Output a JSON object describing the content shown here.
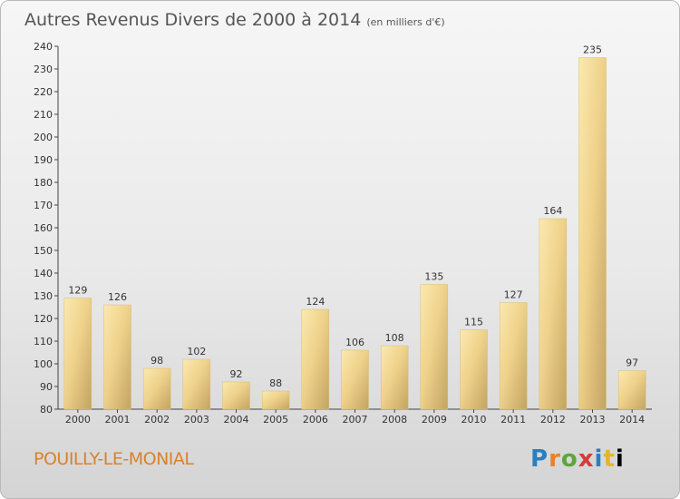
{
  "title": "Autres Revenus Divers de 2000 à 2014",
  "unit_note": "(en milliers d'€)",
  "commune": "POUILLY-LE-MONIAL",
  "logo_text": "Proxiti",
  "colors": {
    "bar_light": "#f7e1a1",
    "bar_dark": "#c9ac68",
    "commune": "#d9822b"
  },
  "chart_data": {
    "type": "bar",
    "categories": [
      "2000",
      "2001",
      "2002",
      "2003",
      "2004",
      "2005",
      "2006",
      "2007",
      "2008",
      "2009",
      "2010",
      "2011",
      "2012",
      "2013",
      "2014"
    ],
    "values": [
      129,
      126,
      98,
      102,
      92,
      88,
      124,
      106,
      108,
      135,
      115,
      127,
      164,
      235,
      97
    ],
    "ylim": [
      80,
      240
    ],
    "yticks": [
      80,
      90,
      100,
      110,
      120,
      130,
      140,
      150,
      160,
      170,
      180,
      190,
      200,
      210,
      220,
      230,
      240
    ],
    "grid": false
  }
}
